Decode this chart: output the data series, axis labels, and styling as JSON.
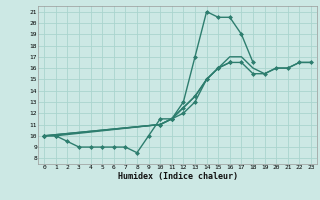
{
  "title": "",
  "xlabel": "Humidex (Indice chaleur)",
  "ylabel": "",
  "bg_color": "#cce8e4",
  "grid_color": "#aad4ce",
  "line_color": "#2d7d6e",
  "xlim": [
    -0.5,
    23.5
  ],
  "ylim": [
    7.5,
    21.5
  ],
  "xticks": [
    0,
    1,
    2,
    3,
    4,
    5,
    6,
    7,
    8,
    9,
    10,
    11,
    12,
    13,
    14,
    15,
    16,
    17,
    18,
    19,
    20,
    21,
    22,
    23
  ],
  "yticks": [
    8,
    9,
    10,
    11,
    12,
    13,
    14,
    15,
    16,
    17,
    18,
    19,
    20,
    21
  ],
  "series": [
    {
      "x": [
        0,
        1,
        2,
        3,
        4,
        5,
        6,
        7,
        8,
        9,
        10,
        11,
        12,
        13,
        14,
        15,
        16,
        17,
        18
      ],
      "y": [
        10,
        10,
        9.5,
        9,
        9,
        9,
        9,
        9,
        8.5,
        10,
        11.5,
        11.5,
        13,
        17,
        21,
        20.5,
        20.5,
        19,
        16.5
      ],
      "marker": "D",
      "markersize": 2.0,
      "linewidth": 1.0
    },
    {
      "x": [
        0,
        1,
        10,
        11,
        12,
        13,
        14,
        15,
        16
      ],
      "y": [
        10,
        10,
        11,
        11.5,
        12,
        13,
        15,
        16,
        16.5
      ],
      "marker": "D",
      "markersize": 2.0,
      "linewidth": 1.0
    },
    {
      "x": [
        0,
        10,
        11,
        12,
        13,
        14,
        15,
        16,
        17,
        18,
        19,
        20,
        21,
        22,
        23
      ],
      "y": [
        10,
        11,
        11.5,
        12.5,
        13.5,
        15,
        16,
        16.5,
        16.5,
        15.5,
        15.5,
        16,
        16,
        16.5,
        16.5
      ],
      "marker": "D",
      "markersize": 2.0,
      "linewidth": 1.0
    },
    {
      "x": [
        0,
        10,
        11,
        12,
        13,
        14,
        15,
        16,
        17,
        18,
        19,
        20,
        21,
        22,
        23
      ],
      "y": [
        10,
        11,
        11.5,
        12.5,
        13.5,
        15,
        16,
        17,
        17,
        16,
        15.5,
        16,
        16,
        16.5,
        16.5
      ],
      "marker": null,
      "markersize": 0,
      "linewidth": 1.0
    }
  ]
}
